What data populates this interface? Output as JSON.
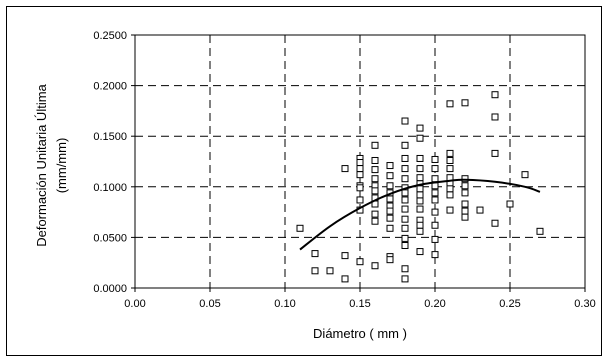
{
  "chart_data": {
    "type": "scatter",
    "title": "",
    "xlabel": "Diámetro ( mm )",
    "ylabel_line1": "Deformación Unitaria Última",
    "ylabel_line2": "(mm/mm)",
    "xlim": [
      0.0,
      0.3
    ],
    "ylim": [
      0.0,
      0.25
    ],
    "x_ticks": [
      "0.00",
      "0.05",
      "0.10",
      "0.15",
      "0.20",
      "0.25",
      "0.30"
    ],
    "y_ticks": [
      "0.0000",
      "0.0500",
      "0.1000",
      "0.1500",
      "0.2000",
      "0.2500"
    ],
    "grid": "dashed",
    "marker": "open-square",
    "points": [
      [
        0.11,
        0.059
      ],
      [
        0.12,
        0.034
      ],
      [
        0.12,
        0.017
      ],
      [
        0.13,
        0.017
      ],
      [
        0.14,
        0.032
      ],
      [
        0.14,
        0.009
      ],
      [
        0.14,
        0.118
      ],
      [
        0.15,
        0.128
      ],
      [
        0.15,
        0.124
      ],
      [
        0.15,
        0.118
      ],
      [
        0.15,
        0.112
      ],
      [
        0.15,
        0.101
      ],
      [
        0.15,
        0.099
      ],
      [
        0.15,
        0.087
      ],
      [
        0.15,
        0.077
      ],
      [
        0.15,
        0.026
      ],
      [
        0.16,
        0.022
      ],
      [
        0.16,
        0.141
      ],
      [
        0.16,
        0.126
      ],
      [
        0.16,
        0.117
      ],
      [
        0.16,
        0.108
      ],
      [
        0.16,
        0.101
      ],
      [
        0.16,
        0.096
      ],
      [
        0.16,
        0.089
      ],
      [
        0.16,
        0.083
      ],
      [
        0.16,
        0.073
      ],
      [
        0.16,
        0.066
      ],
      [
        0.17,
        0.121
      ],
      [
        0.17,
        0.111
      ],
      [
        0.17,
        0.101
      ],
      [
        0.17,
        0.094
      ],
      [
        0.17,
        0.088
      ],
      [
        0.17,
        0.081
      ],
      [
        0.17,
        0.076
      ],
      [
        0.17,
        0.069
      ],
      [
        0.17,
        0.059
      ],
      [
        0.17,
        0.031
      ],
      [
        0.17,
        0.028
      ],
      [
        0.18,
        0.165
      ],
      [
        0.18,
        0.141
      ],
      [
        0.18,
        0.128
      ],
      [
        0.18,
        0.118
      ],
      [
        0.18,
        0.108
      ],
      [
        0.18,
        0.099
      ],
      [
        0.18,
        0.094
      ],
      [
        0.18,
        0.087
      ],
      [
        0.18,
        0.078
      ],
      [
        0.18,
        0.068
      ],
      [
        0.18,
        0.059
      ],
      [
        0.18,
        0.049
      ],
      [
        0.18,
        0.042
      ],
      [
        0.18,
        0.019
      ],
      [
        0.18,
        0.009
      ],
      [
        0.19,
        0.158
      ],
      [
        0.19,
        0.148
      ],
      [
        0.19,
        0.128
      ],
      [
        0.19,
        0.118
      ],
      [
        0.19,
        0.109
      ],
      [
        0.19,
        0.103
      ],
      [
        0.19,
        0.098
      ],
      [
        0.19,
        0.092
      ],
      [
        0.19,
        0.086
      ],
      [
        0.19,
        0.078
      ],
      [
        0.19,
        0.067
      ],
      [
        0.19,
        0.062
      ],
      [
        0.19,
        0.056
      ],
      [
        0.19,
        0.036
      ],
      [
        0.2,
        0.127
      ],
      [
        0.2,
        0.118
      ],
      [
        0.2,
        0.108
      ],
      [
        0.2,
        0.101
      ],
      [
        0.2,
        0.094
      ],
      [
        0.2,
        0.087
      ],
      [
        0.2,
        0.075
      ],
      [
        0.2,
        0.062
      ],
      [
        0.2,
        0.048
      ],
      [
        0.2,
        0.033
      ],
      [
        0.21,
        0.182
      ],
      [
        0.21,
        0.133
      ],
      [
        0.21,
        0.126
      ],
      [
        0.21,
        0.118
      ],
      [
        0.21,
        0.109
      ],
      [
        0.21,
        0.103
      ],
      [
        0.21,
        0.098
      ],
      [
        0.21,
        0.092
      ],
      [
        0.21,
        0.077
      ],
      [
        0.22,
        0.183
      ],
      [
        0.22,
        0.108
      ],
      [
        0.22,
        0.101
      ],
      [
        0.22,
        0.094
      ],
      [
        0.22,
        0.083
      ],
      [
        0.22,
        0.076
      ],
      [
        0.22,
        0.07
      ],
      [
        0.23,
        0.077
      ],
      [
        0.24,
        0.191
      ],
      [
        0.24,
        0.169
      ],
      [
        0.24,
        0.133
      ],
      [
        0.24,
        0.064
      ],
      [
        0.25,
        0.083
      ],
      [
        0.26,
        0.112
      ],
      [
        0.27,
        0.056
      ]
    ],
    "trendline": {
      "type": "polynomial-2",
      "points": [
        [
          0.11,
          0.038
        ],
        [
          0.13,
          0.061
        ],
        [
          0.15,
          0.079
        ],
        [
          0.17,
          0.093
        ],
        [
          0.19,
          0.102
        ],
        [
          0.21,
          0.106
        ],
        [
          0.22,
          0.107
        ],
        [
          0.24,
          0.105
        ],
        [
          0.26,
          0.1
        ],
        [
          0.27,
          0.095
        ]
      ]
    }
  }
}
